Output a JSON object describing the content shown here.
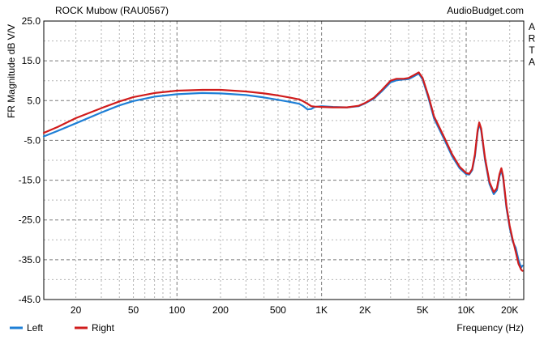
{
  "chart_data": {
    "type": "line",
    "title": "ROCK Mubow (RAU0567)",
    "source": "AudioBudget.com",
    "side_label": "ARTA",
    "xlabel": "Frequency (Hz)",
    "ylabel": "FR Magnitude dB V/V",
    "xscale": "log",
    "xlim": [
      12,
      25000
    ],
    "ylim": [
      -45,
      25
    ],
    "yticks": [
      25.0,
      15.0,
      5.0,
      -5.0,
      -15.0,
      -25.0,
      -35.0,
      -45.0
    ],
    "yticks_minor": [
      20,
      10,
      0,
      -10,
      -20,
      -30,
      -40
    ],
    "xticks": [
      {
        "value": 20,
        "label": "20"
      },
      {
        "value": 50,
        "label": "50"
      },
      {
        "value": 100,
        "label": "100"
      },
      {
        "value": 200,
        "label": "200"
      },
      {
        "value": 500,
        "label": "500"
      },
      {
        "value": 1000,
        "label": "1K"
      },
      {
        "value": 2000,
        "label": "2K"
      },
      {
        "value": 5000,
        "label": "5K"
      },
      {
        "value": 10000,
        "label": "10K"
      },
      {
        "value": 20000,
        "label": "20K"
      }
    ],
    "grid": true,
    "legend": "bottom-left",
    "series": [
      {
        "name": "Left",
        "color": "#1e7fd6",
        "points": [
          [
            12,
            -4.0
          ],
          [
            15,
            -2.6
          ],
          [
            20,
            -0.7
          ],
          [
            30,
            2.0
          ],
          [
            40,
            3.8
          ],
          [
            50,
            4.9
          ],
          [
            70,
            6.0
          ],
          [
            100,
            6.6
          ],
          [
            150,
            6.9
          ],
          [
            200,
            6.8
          ],
          [
            300,
            6.4
          ],
          [
            400,
            5.8
          ],
          [
            500,
            5.2
          ],
          [
            600,
            4.7
          ],
          [
            700,
            4.2
          ],
          [
            750,
            3.6
          ],
          [
            800,
            2.8
          ],
          [
            850,
            2.9
          ],
          [
            900,
            3.4
          ],
          [
            1000,
            3.6
          ],
          [
            1200,
            3.4
          ],
          [
            1500,
            3.3
          ],
          [
            1800,
            3.6
          ],
          [
            2000,
            4.3
          ],
          [
            2300,
            5.5
          ],
          [
            2600,
            7.3
          ],
          [
            3000,
            9.6
          ],
          [
            3300,
            10.1
          ],
          [
            3700,
            10.3
          ],
          [
            4000,
            10.4
          ],
          [
            4300,
            11.0
          ],
          [
            4700,
            11.8
          ],
          [
            5000,
            10.3
          ],
          [
            5500,
            5.5
          ],
          [
            6000,
            0.5
          ],
          [
            7000,
            -4.5
          ],
          [
            8000,
            -9.0
          ],
          [
            9000,
            -12.0
          ],
          [
            10000,
            -13.5
          ],
          [
            10500,
            -13.6
          ],
          [
            11000,
            -12.5
          ],
          [
            11500,
            -9.0
          ],
          [
            12000,
            -3.0
          ],
          [
            12300,
            -0.8
          ],
          [
            12700,
            -2.5
          ],
          [
            13500,
            -10.0
          ],
          [
            14500,
            -16.0
          ],
          [
            15500,
            -18.5
          ],
          [
            16300,
            -17.5
          ],
          [
            17000,
            -14.0
          ],
          [
            17500,
            -12.5
          ],
          [
            18000,
            -14.5
          ],
          [
            19000,
            -22.0
          ],
          [
            20000,
            -27.0
          ],
          [
            21000,
            -30.5
          ],
          [
            22000,
            -32.0
          ],
          [
            23000,
            -35.0
          ],
          [
            24000,
            -37.0
          ],
          [
            24500,
            -36.5
          ]
        ]
      },
      {
        "name": "Right",
        "color": "#d01c1c",
        "points": [
          [
            12,
            -3.1
          ],
          [
            15,
            -1.6
          ],
          [
            20,
            0.6
          ],
          [
            30,
            3.1
          ],
          [
            40,
            4.8
          ],
          [
            50,
            5.9
          ],
          [
            70,
            6.9
          ],
          [
            100,
            7.5
          ],
          [
            150,
            7.7
          ],
          [
            200,
            7.7
          ],
          [
            300,
            7.3
          ],
          [
            400,
            6.8
          ],
          [
            500,
            6.3
          ],
          [
            600,
            5.8
          ],
          [
            700,
            5.3
          ],
          [
            750,
            4.8
          ],
          [
            800,
            4.2
          ],
          [
            850,
            3.6
          ],
          [
            900,
            3.5
          ],
          [
            1000,
            3.4
          ],
          [
            1200,
            3.3
          ],
          [
            1500,
            3.3
          ],
          [
            1800,
            3.7
          ],
          [
            2000,
            4.4
          ],
          [
            2300,
            5.7
          ],
          [
            2600,
            7.6
          ],
          [
            3000,
            10.0
          ],
          [
            3300,
            10.5
          ],
          [
            3700,
            10.5
          ],
          [
            4000,
            10.7
          ],
          [
            4300,
            11.3
          ],
          [
            4700,
            12.1
          ],
          [
            5000,
            10.7
          ],
          [
            5500,
            6.0
          ],
          [
            6000,
            1.0
          ],
          [
            7000,
            -4.0
          ],
          [
            8000,
            -8.5
          ],
          [
            9000,
            -11.6
          ],
          [
            10000,
            -13.2
          ],
          [
            10500,
            -13.4
          ],
          [
            11000,
            -12.2
          ],
          [
            11500,
            -8.5
          ],
          [
            12000,
            -2.5
          ],
          [
            12300,
            -0.5
          ],
          [
            12700,
            -2.0
          ],
          [
            13500,
            -9.5
          ],
          [
            14500,
            -15.5
          ],
          [
            15500,
            -18.0
          ],
          [
            16300,
            -17.0
          ],
          [
            17000,
            -13.5
          ],
          [
            17500,
            -12.0
          ],
          [
            18000,
            -14.0
          ],
          [
            19000,
            -21.5
          ],
          [
            20000,
            -26.5
          ],
          [
            21000,
            -30.0
          ],
          [
            22000,
            -33.0
          ],
          [
            23000,
            -36.0
          ],
          [
            24000,
            -37.5
          ],
          [
            24500,
            -37.8
          ]
        ]
      }
    ]
  }
}
